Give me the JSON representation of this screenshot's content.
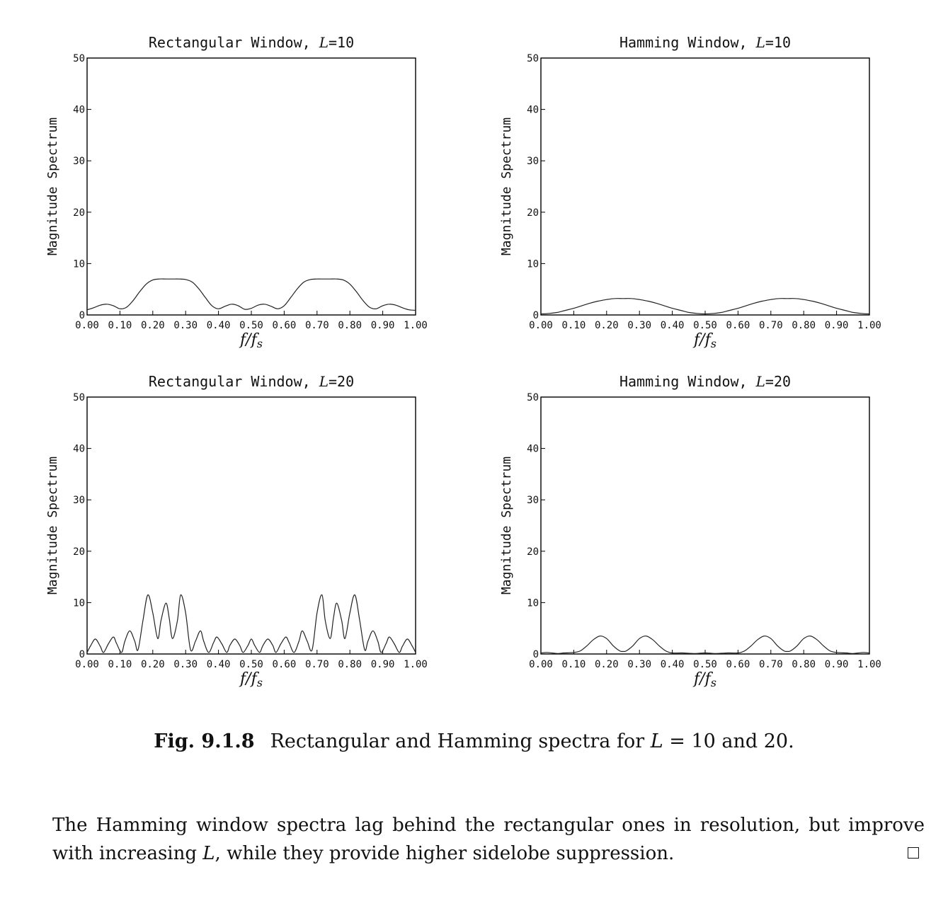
{
  "chart_data": [
    {
      "type": "line",
      "title_text": "Rectangular Window, ",
      "title_var": "L",
      "title_value": "=10",
      "ylabel": "Magnitude Spectrum",
      "xlabel": "f/fs",
      "xlim": [
        0,
        1
      ],
      "ylim": [
        0,
        50
      ],
      "x_ticks": [
        "0.00",
        "0.10",
        "0.20",
        "0.30",
        "0.40",
        "0.50",
        "0.60",
        "0.70",
        "0.80",
        "0.90",
        "1.00"
      ],
      "y_ticks": [
        "0",
        "10",
        "20",
        "30",
        "40",
        "50"
      ],
      "series": [
        {
          "x": [
            0,
            0.02,
            0.04,
            0.06,
            0.08,
            0.1,
            0.12,
            0.14,
            0.16,
            0.18,
            0.2,
            0.22,
            0.24,
            0.26,
            0.28,
            0.3,
            0.32,
            0.34,
            0.36,
            0.38,
            0.4,
            0.42,
            0.44,
            0.46,
            0.48,
            0.5,
            0.52,
            0.54,
            0.56,
            0.58,
            0.6,
            0.62,
            0.64,
            0.66,
            0.68,
            0.7,
            0.72,
            0.74,
            0.76,
            0.78,
            0.8,
            0.82,
            0.84,
            0.86,
            0.88,
            0.9,
            0.92,
            0.94,
            0.96,
            0.98,
            1.0
          ],
          "y": [
            1.0,
            1.4,
            1.9,
            2.1,
            1.8,
            1.2,
            1.5,
            2.8,
            4.5,
            6.0,
            6.8,
            7.0,
            7.0,
            7.0,
            7.0,
            6.9,
            6.4,
            5.1,
            3.4,
            1.8,
            1.2,
            1.7,
            2.1,
            1.8,
            1.1,
            1.3,
            1.9,
            2.1,
            1.7,
            1.2,
            1.8,
            3.4,
            5.1,
            6.4,
            6.9,
            7.0,
            7.0,
            7.0,
            7.0,
            6.8,
            6.0,
            4.5,
            2.8,
            1.5,
            1.2,
            1.8,
            2.1,
            1.9,
            1.4,
            1.0,
            0.9
          ]
        }
      ]
    },
    {
      "type": "line",
      "title_text": "Hamming Window, ",
      "title_var": "L",
      "title_value": "=10",
      "ylabel": "Magnitude Spectrum",
      "xlabel": "f/fs",
      "xlim": [
        0,
        1
      ],
      "ylim": [
        0,
        50
      ],
      "x_ticks": [
        "0.00",
        "0.10",
        "0.20",
        "0.30",
        "0.40",
        "0.50",
        "0.60",
        "0.70",
        "0.80",
        "0.90",
        "1.00"
      ],
      "y_ticks": [
        "0",
        "10",
        "20",
        "30",
        "40",
        "50"
      ],
      "series": [
        {
          "x": [
            0,
            0.025,
            0.05,
            0.075,
            0.1,
            0.125,
            0.15,
            0.175,
            0.2,
            0.225,
            0.25,
            0.275,
            0.3,
            0.325,
            0.35,
            0.375,
            0.4,
            0.425,
            0.45,
            0.475,
            0.5,
            0.525,
            0.55,
            0.575,
            0.6,
            0.625,
            0.65,
            0.675,
            0.7,
            0.725,
            0.75,
            0.775,
            0.8,
            0.825,
            0.85,
            0.875,
            0.9,
            0.925,
            0.95,
            0.975,
            1.0
          ],
          "y": [
            0.2,
            0.3,
            0.5,
            0.9,
            1.3,
            1.8,
            2.3,
            2.7,
            3.0,
            3.2,
            3.2,
            3.2,
            3.0,
            2.7,
            2.3,
            1.8,
            1.3,
            0.9,
            0.5,
            0.3,
            0.2,
            0.3,
            0.5,
            0.9,
            1.3,
            1.8,
            2.3,
            2.7,
            3.0,
            3.2,
            3.2,
            3.2,
            3.0,
            2.7,
            2.3,
            1.8,
            1.3,
            0.9,
            0.5,
            0.3,
            0.2
          ]
        }
      ]
    },
    {
      "type": "line",
      "title_text": "Rectangular Window, ",
      "title_var": "L",
      "title_value": "=20",
      "ylabel": "Magnitude Spectrum",
      "xlabel": "f/fs",
      "xlim": [
        0,
        1
      ],
      "ylim": [
        0,
        50
      ],
      "x_ticks": [
        "0.00",
        "0.10",
        "0.20",
        "0.30",
        "0.40",
        "0.50",
        "0.60",
        "0.70",
        "0.80",
        "0.90",
        "1.00"
      ],
      "y_ticks": [
        "0",
        "10",
        "20",
        "30",
        "40",
        "50"
      ],
      "series": [
        {
          "x": [
            0,
            0.01,
            0.025,
            0.04,
            0.05,
            0.065,
            0.08,
            0.09,
            0.105,
            0.115,
            0.13,
            0.145,
            0.155,
            0.17,
            0.185,
            0.2,
            0.215,
            0.225,
            0.24,
            0.25,
            0.26,
            0.275,
            0.285,
            0.3,
            0.315,
            0.33,
            0.345,
            0.355,
            0.37,
            0.385,
            0.395,
            0.41,
            0.425,
            0.435,
            0.45,
            0.465,
            0.475,
            0.49,
            0.5,
            0.51,
            0.525,
            0.535,
            0.55,
            0.565,
            0.575,
            0.59,
            0.605,
            0.615,
            0.63,
            0.645,
            0.655,
            0.67,
            0.685,
            0.7,
            0.715,
            0.725,
            0.74,
            0.75,
            0.76,
            0.775,
            0.785,
            0.8,
            0.815,
            0.83,
            0.845,
            0.855,
            0.87,
            0.885,
            0.895,
            0.91,
            0.92,
            0.935,
            0.95,
            0.96,
            0.975,
            0.99,
            1.0
          ],
          "y": [
            0.3,
            1.5,
            2.9,
            1.5,
            0.3,
            2.0,
            3.3,
            2.0,
            0.3,
            2.5,
            4.5,
            2.5,
            0.8,
            6.5,
            11.5,
            8.0,
            3.0,
            6.5,
            9.9,
            7.0,
            3.0,
            6.5,
            11.5,
            8.0,
            0.8,
            2.5,
            4.5,
            2.5,
            0.3,
            2.2,
            3.3,
            2.0,
            0.3,
            1.7,
            2.9,
            1.6,
            0.3,
            1.7,
            2.9,
            1.7,
            0.3,
            1.6,
            2.9,
            1.7,
            0.3,
            2.0,
            3.3,
            2.2,
            0.3,
            2.5,
            4.5,
            2.5,
            0.8,
            8.0,
            11.5,
            6.5,
            3.0,
            7.0,
            9.9,
            6.5,
            3.0,
            8.0,
            11.5,
            6.5,
            0.8,
            2.5,
            4.5,
            2.5,
            0.3,
            2.0,
            3.3,
            2.0,
            0.3,
            1.5,
            2.9,
            1.5,
            0.3
          ]
        }
      ]
    },
    {
      "type": "line",
      "title_text": "Hamming Window, ",
      "title_var": "L",
      "title_value": "=20",
      "ylabel": "Magnitude Spectrum",
      "xlabel": "f/fs",
      "xlim": [
        0,
        1
      ],
      "ylim": [
        0,
        50
      ],
      "x_ticks": [
        "0.00",
        "0.10",
        "0.20",
        "0.30",
        "0.40",
        "0.50",
        "0.60",
        "0.70",
        "0.80",
        "0.90",
        "1.00"
      ],
      "y_ticks": [
        "0",
        "10",
        "20",
        "30",
        "40",
        "50"
      ],
      "series": [
        {
          "x": [
            0,
            0.02,
            0.05,
            0.07,
            0.1,
            0.12,
            0.14,
            0.16,
            0.18,
            0.2,
            0.22,
            0.24,
            0.25,
            0.26,
            0.28,
            0.3,
            0.32,
            0.34,
            0.36,
            0.38,
            0.4,
            0.43,
            0.47,
            0.5,
            0.53,
            0.57,
            0.6,
            0.62,
            0.64,
            0.66,
            0.68,
            0.7,
            0.72,
            0.74,
            0.75,
            0.76,
            0.78,
            0.8,
            0.82,
            0.84,
            0.86,
            0.88,
            0.9,
            0.93,
            0.95,
            0.98,
            1.0
          ],
          "y": [
            0.2,
            0.3,
            0.1,
            0.2,
            0.3,
            0.6,
            1.6,
            2.8,
            3.5,
            3.0,
            1.6,
            0.6,
            0.5,
            0.6,
            1.6,
            3.0,
            3.5,
            2.8,
            1.6,
            0.6,
            0.2,
            0.2,
            0.1,
            0.2,
            0.1,
            0.2,
            0.2,
            0.6,
            1.6,
            2.8,
            3.5,
            3.0,
            1.6,
            0.6,
            0.5,
            0.6,
            1.6,
            3.0,
            3.5,
            2.8,
            1.6,
            0.6,
            0.3,
            0.2,
            0.1,
            0.3,
            0.2
          ]
        }
      ]
    }
  ],
  "caption": {
    "label": "Fig. 9.1.8",
    "text_before": "Rectangular and Hamming spectra for ",
    "var": "L",
    "text_after": " = 10 and 20."
  },
  "paragraph": {
    "part1": "The Hamming window spectra lag behind the rectangular ones in resolution, but improve with increasing ",
    "var": "L",
    "part2": ", while they provide higher sidelobe suppression."
  }
}
